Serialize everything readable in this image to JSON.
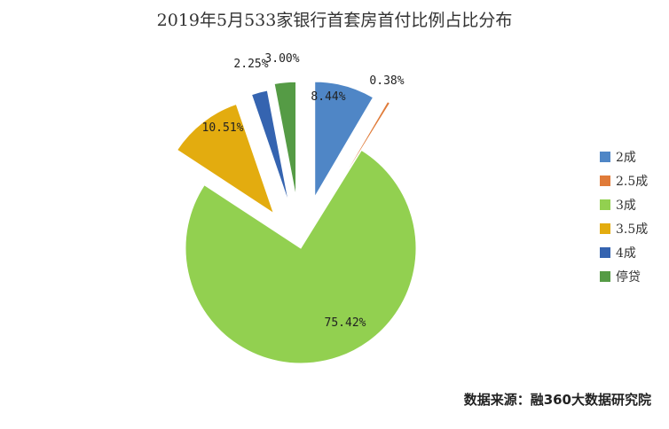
{
  "chart_data": {
    "type": "pie",
    "title": "2019年5月533家银行首套房首付比例占比分布",
    "categories": [
      "2成",
      "2.5成",
      "3成",
      "3.5成",
      "4成",
      "停贷"
    ],
    "values": [
      8.44,
      0.38,
      75.42,
      10.51,
      2.25,
      3.0
    ],
    "labels": [
      "8.44%",
      "0.38%",
      "75.42%",
      "10.51%",
      "2.25%",
      "3.00%"
    ],
    "colors": [
      "#4f86c6",
      "#e07b39",
      "#92d050",
      "#e3ac0f",
      "#3564b0",
      "#559b45"
    ],
    "legend_position": "right"
  },
  "source_text": "数据来源：融360大数据研究院"
}
